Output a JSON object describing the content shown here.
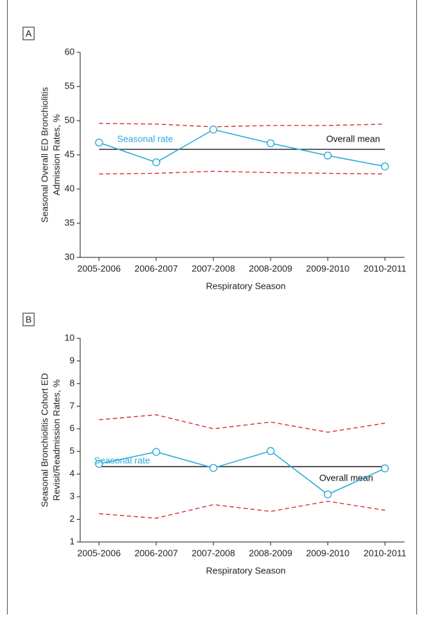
{
  "chart_data": [
    {
      "type": "line",
      "panel": "A",
      "ylabel": [
        "Seasonal Overall ED Bronchiolitis",
        "Admission Rates, %"
      ],
      "xlabel": "Respiratory Season",
      "categories": [
        "2005-2006",
        "2006-2007",
        "2007-2008",
        "2008-2009",
        "2009-2010",
        "2010-2011"
      ],
      "ylim": [
        30,
        60
      ],
      "yticks": [
        30,
        35,
        40,
        45,
        50,
        55,
        60
      ],
      "series": [
        {
          "name": "Seasonal rate",
          "color": "#29a9d8",
          "marker": "circle",
          "values": [
            46.8,
            43.9,
            48.7,
            46.7,
            44.9,
            43.3
          ]
        },
        {
          "name": "Overall mean",
          "color": "#111111",
          "values": [
            45.8,
            45.8,
            45.8,
            45.8,
            45.8,
            45.8
          ]
        },
        {
          "color": "#d9262b",
          "dash": true,
          "values": [
            49.6,
            49.5,
            49.1,
            49.3,
            49.3,
            49.5
          ]
        },
        {
          "color": "#d9262b",
          "dash": true,
          "values": [
            42.2,
            42.3,
            42.6,
            42.4,
            42.3,
            42.2
          ]
        }
      ]
    },
    {
      "type": "line",
      "panel": "B",
      "ylabel": [
        "Seasonal Bronchiolitis Cohort ED",
        "Revisit/Readmission Rates, %"
      ],
      "xlabel": "Respiratory Season",
      "categories": [
        "2005-2006",
        "2006-2007",
        "2007-2008",
        "2008-2009",
        "2009-2010",
        "2010-2011"
      ],
      "ylim": [
        1,
        10
      ],
      "yticks": [
        1,
        2,
        3,
        4,
        5,
        6,
        7,
        8,
        9,
        10
      ],
      "series": [
        {
          "name": "Seasonal rate",
          "color": "#29a9d8",
          "marker": "circle",
          "values": [
            4.45,
            4.98,
            4.27,
            5.02,
            3.1,
            4.25
          ]
        },
        {
          "name": "Overall mean",
          "color": "#111111",
          "values": [
            4.33,
            4.33,
            4.33,
            4.33,
            4.33,
            4.33
          ]
        },
        {
          "color": "#d9262b",
          "dash": true,
          "values": [
            6.4,
            6.62,
            6.0,
            6.3,
            5.85,
            6.25
          ]
        },
        {
          "color": "#d9262b",
          "dash": true,
          "values": [
            2.25,
            2.05,
            2.65,
            2.35,
            2.8,
            2.4
          ]
        }
      ]
    }
  ]
}
